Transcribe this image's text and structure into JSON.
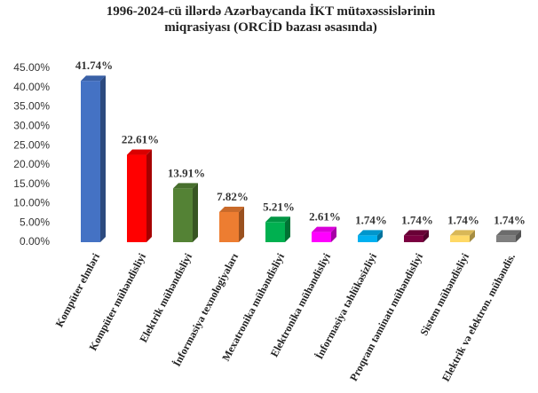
{
  "chart_data": {
    "type": "bar3d",
    "title": "1996-2024-cü illərdə Azərbaycanda İKT mütəxəssislərinin miqrasiyası (ORCİD bazası əsasında)",
    "categories": [
      "Kompüter elmləri",
      "Kompüter mühəndisliyi",
      "Elektrik mühəndisliyi",
      "İnformasiya texnologiyaları",
      "Mexatronika mühəndisliyi",
      "Elektronika mühəndisliyi",
      "İnformasiya təhlükəsizliyi",
      "Proqram təminatı mühəndisliyi",
      "Sistem mühəndisliyi",
      "Elektrik və elektron. mühəndis."
    ],
    "values": [
      41.74,
      22.61,
      13.91,
      7.82,
      5.21,
      2.61,
      1.74,
      1.74,
      1.74,
      1.74
    ],
    "value_labels": [
      "41.74%",
      "22.61%",
      "13.91%",
      "7.82%",
      "5.21%",
      "2.61%",
      "1.74%",
      "1.74%",
      "1.74%",
      "1.74%"
    ],
    "colors": [
      "#4472c4",
      "#ff0000",
      "#548235",
      "#ed7d31",
      "#00b050",
      "#ff00ff",
      "#00b0f0",
      "#7b0040",
      "#ffd966",
      "#7f7f7f"
    ],
    "ylim": [
      0,
      45
    ],
    "yticks": [
      {
        "value": 0,
        "label": "0.00%"
      },
      {
        "value": 5,
        "label": "5.00%"
      },
      {
        "value": 10,
        "label": "10.00%"
      },
      {
        "value": 15,
        "label": "15.00%"
      },
      {
        "value": 20,
        "label": "20.00%"
      },
      {
        "value": 25,
        "label": "25.00%"
      },
      {
        "value": 30,
        "label": "30.00%"
      },
      {
        "value": 35,
        "label": "35.00%"
      },
      {
        "value": 40,
        "label": "40.00%"
      },
      {
        "value": 45,
        "label": "45.00%"
      }
    ],
    "grid": false
  }
}
